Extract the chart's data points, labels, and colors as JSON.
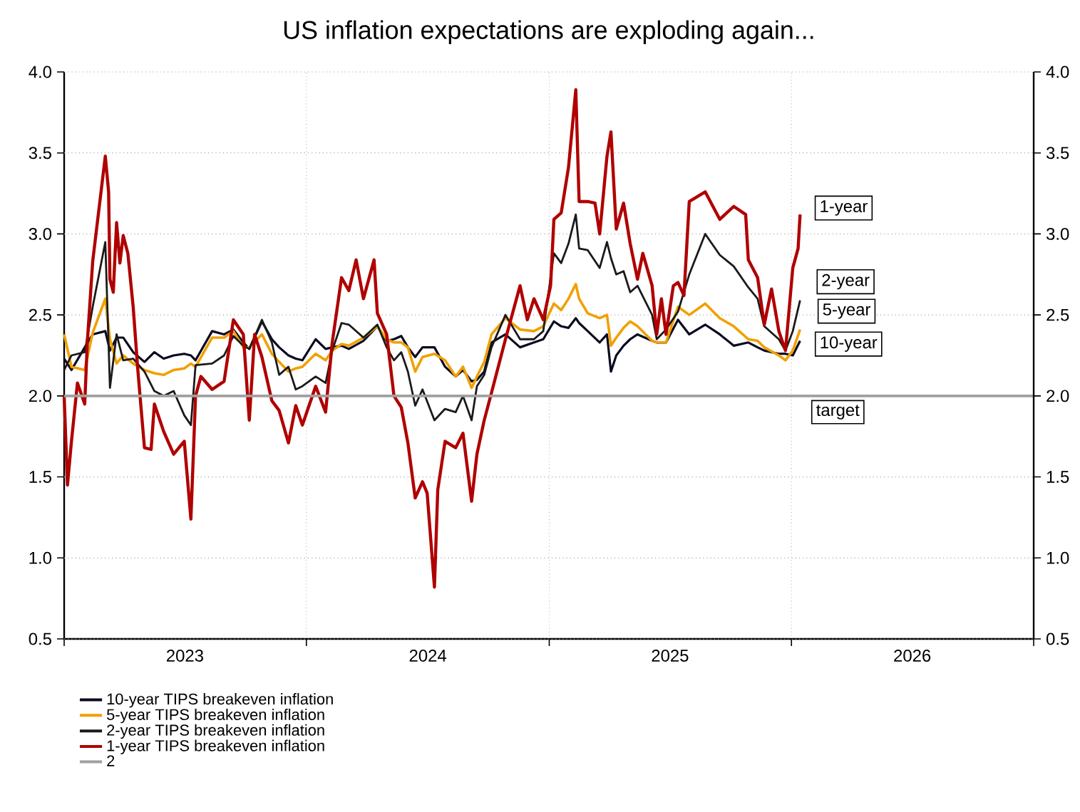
{
  "chart_data": {
    "type": "line",
    "title": "US inflation expectations are exploding again...",
    "xlim": [
      "2023-01-01",
      "2027-01-01"
    ],
    "xticks": [
      {
        "value": "2023-01-01",
        "label": null
      },
      {
        "value": "2023-07-02",
        "label": "2023"
      },
      {
        "value": "2024-01-01",
        "label": null
      },
      {
        "value": "2024-07-02",
        "label": "2024"
      },
      {
        "value": "2025-01-01",
        "label": null
      },
      {
        "value": "2025-07-02",
        "label": "2025"
      },
      {
        "value": "2026-01-01",
        "label": null
      },
      {
        "value": "2026-07-02",
        "label": "2026"
      },
      {
        "value": "2027-01-01",
        "label": null
      }
    ],
    "ylim": [
      0.5,
      4.0
    ],
    "yticks": [
      0.5,
      {
        "value": 1.0,
        "label": "1.0"
      },
      1.5,
      {
        "value": 2.0,
        "label": "2.0"
      },
      2.5,
      {
        "value": 3.0,
        "label": "3.0"
      },
      3.5,
      {
        "value": 4.0,
        "label": "4.0"
      }
    ],
    "y2lim": [
      0.5,
      4.0
    ],
    "y2ticks": [
      0.5,
      {
        "value": 1.0,
        "label": "1.0"
      },
      1.5,
      {
        "value": 2.0,
        "label": "2.0"
      },
      2.5,
      {
        "value": 3.0,
        "label": "3.0"
      },
      3.5,
      {
        "value": 4.0,
        "label": "4.0"
      }
    ],
    "grid": true,
    "legend": "bottom",
    "line_style": "solid",
    "x": [
      "2023-01-01",
      "2023-01-12",
      "2023-02-01",
      "2023-02-13",
      "2023-03-04",
      "2023-03-11",
      "2023-03-21",
      "2023-03-31",
      "2023-04-15",
      "2023-05-02",
      "2023-05-17",
      "2023-05-31",
      "2023-06-15",
      "2023-07-01",
      "2023-07-11",
      "2023-07-18",
      "2023-08-12",
      "2023-08-30",
      "2023-09-13",
      "2023-09-28",
      "2023-10-07",
      "2023-10-26",
      "2023-11-10",
      "2023-11-21",
      "2023-12-05",
      "2023-12-16",
      "2023-12-26",
      "2024-01-15",
      "2024-01-30",
      "2024-02-09",
      "2024-02-23",
      "2024-03-05",
      "2024-03-27",
      "2024-04-17",
      "2024-05-01",
      "2024-05-12",
      "2024-05-23",
      "2024-06-02",
      "2024-06-13",
      "2024-06-24",
      "2024-07-12",
      "2024-07-28",
      "2024-08-13",
      "2024-08-24",
      "2024-09-06",
      "2024-09-14",
      "2024-09-25",
      "2024-10-06",
      "2024-10-27",
      "2024-11-18",
      "2024-12-09",
      "2024-12-23",
      "2025-01-08",
      "2025-01-19",
      "2025-01-30",
      "2025-02-10",
      "2025-02-15",
      "2025-02-28",
      "2025-03-18",
      "2025-03-29",
      "2025-04-04",
      "2025-04-12",
      "2025-04-23",
      "2025-05-03",
      "2025-05-14",
      "2025-06-05",
      "2025-06-12",
      "2025-06-26",
      "2025-07-14",
      "2025-07-31",
      "2025-08-24",
      "2025-09-15",
      "2025-10-06",
      "2025-10-28",
      "2025-11-11",
      "2025-11-21",
      "2025-12-13",
      "2025-12-23",
      "2026-01-03",
      "2026-01-14"
    ],
    "series": [
      {
        "name": "10-year TIPS breakeven inflation",
        "color": "#0a0a20",
        "values": [
          2.23,
          2.16,
          2.3,
          2.38,
          2.4,
          2.28,
          2.36,
          2.36,
          2.27,
          2.21,
          2.27,
          2.23,
          2.25,
          2.26,
          2.25,
          2.22,
          2.4,
          2.38,
          2.41,
          2.33,
          2.29,
          2.46,
          2.35,
          2.3,
          2.25,
          2.23,
          2.22,
          2.35,
          2.29,
          2.3,
          2.31,
          2.29,
          2.34,
          2.43,
          2.34,
          2.35,
          2.37,
          2.3,
          2.24,
          2.3,
          2.3,
          2.18,
          2.12,
          2.16,
          2.09,
          2.1,
          2.15,
          2.33,
          2.38,
          2.3,
          2.33,
          2.35,
          2.46,
          2.43,
          2.42,
          2.48,
          2.45,
          2.4,
          2.33,
          2.38,
          2.15,
          2.25,
          2.31,
          2.35,
          2.38,
          2.34,
          2.33,
          2.33,
          2.47,
          2.38,
          2.44,
          2.38,
          2.31,
          2.33,
          2.3,
          2.28,
          2.26,
          2.26,
          2.25,
          2.34
        ]
      },
      {
        "name": "5-year TIPS breakeven inflation",
        "color": "#f0a000",
        "values": [
          2.38,
          2.18,
          2.16,
          2.39,
          2.6,
          2.35,
          2.2,
          2.25,
          2.2,
          2.16,
          2.14,
          2.13,
          2.16,
          2.17,
          2.2,
          2.18,
          2.36,
          2.36,
          2.4,
          2.3,
          2.3,
          2.38,
          2.26,
          2.21,
          2.15,
          2.17,
          2.18,
          2.26,
          2.22,
          2.28,
          2.32,
          2.31,
          2.36,
          2.43,
          2.35,
          2.33,
          2.33,
          2.3,
          2.15,
          2.24,
          2.26,
          2.22,
          2.12,
          2.18,
          2.05,
          2.12,
          2.21,
          2.38,
          2.48,
          2.41,
          2.4,
          2.43,
          2.57,
          2.53,
          2.6,
          2.69,
          2.6,
          2.51,
          2.48,
          2.5,
          2.31,
          2.36,
          2.42,
          2.46,
          2.43,
          2.34,
          2.33,
          2.33,
          2.55,
          2.5,
          2.57,
          2.48,
          2.43,
          2.35,
          2.34,
          2.3,
          2.25,
          2.22,
          2.28,
          2.41
        ]
      },
      {
        "name": "2-year TIPS breakeven inflation",
        "color": "#1a1a1a",
        "values": [
          2.16,
          2.25,
          2.27,
          2.55,
          2.95,
          2.05,
          2.38,
          2.22,
          2.23,
          2.15,
          2.03,
          2.0,
          2.03,
          1.88,
          1.82,
          2.19,
          2.2,
          2.25,
          2.37,
          2.31,
          2.29,
          2.47,
          2.33,
          2.13,
          2.18,
          2.04,
          2.06,
          2.12,
          2.08,
          2.28,
          2.45,
          2.44,
          2.36,
          2.44,
          2.3,
          2.22,
          2.27,
          2.15,
          1.94,
          2.04,
          1.85,
          1.92,
          1.9,
          2.0,
          1.85,
          2.06,
          2.13,
          2.3,
          2.5,
          2.35,
          2.35,
          2.4,
          2.88,
          2.82,
          2.94,
          3.12,
          2.91,
          2.9,
          2.79,
          2.95,
          2.85,
          2.75,
          2.77,
          2.64,
          2.68,
          2.5,
          2.35,
          2.41,
          2.52,
          2.75,
          3.0,
          2.87,
          2.8,
          2.67,
          2.6,
          2.43,
          2.35,
          2.28,
          2.4,
          2.59
        ]
      },
      {
        "name": "1-year TIPS breakeven inflation",
        "color": "#b00000",
        "x": [
          "2023-01-01",
          "2023-01-06",
          "2023-01-12",
          "2023-01-21",
          "2023-02-01",
          "2023-02-05",
          "2023-02-13",
          "2023-02-20",
          "2023-03-04",
          "2023-03-09",
          "2023-03-11",
          "2023-03-16",
          "2023-03-21",
          "2023-03-26",
          "2023-03-31",
          "2023-04-07",
          "2023-04-15",
          "2023-04-22",
          "2023-05-02",
          "2023-05-12",
          "2023-05-17",
          "2023-05-31",
          "2023-06-15",
          "2023-07-01",
          "2023-07-11",
          "2023-07-18",
          "2023-07-26",
          "2023-08-12",
          "2023-08-30",
          "2023-09-13",
          "2023-09-28",
          "2023-10-07",
          "2023-10-15",
          "2023-10-26",
          "2023-11-10",
          "2023-11-21",
          "2023-12-05",
          "2023-12-16",
          "2023-12-26",
          "2024-01-15",
          "2024-01-30",
          "2024-02-09",
          "2024-02-23",
          "2024-03-05",
          "2024-03-16",
          "2024-03-27",
          "2024-04-12",
          "2024-04-17",
          "2024-05-01",
          "2024-05-12",
          "2024-05-23",
          "2024-06-02",
          "2024-06-13",
          "2024-06-24",
          "2024-07-01",
          "2024-07-12",
          "2024-07-17",
          "2024-07-28",
          "2024-08-13",
          "2024-08-24",
          "2024-09-06",
          "2024-09-14",
          "2024-09-25",
          "2024-10-06",
          "2024-10-27",
          "2024-11-18",
          "2024-11-29",
          "2024-12-09",
          "2024-12-23",
          "2025-01-03",
          "2025-01-08",
          "2025-01-19",
          "2025-01-30",
          "2025-02-10",
          "2025-02-15",
          "2025-02-28",
          "2025-03-11",
          "2025-03-18",
          "2025-03-29",
          "2025-04-04",
          "2025-04-12",
          "2025-04-23",
          "2025-05-03",
          "2025-05-14",
          "2025-05-22",
          "2025-06-05",
          "2025-06-12",
          "2025-06-19",
          "2025-06-26",
          "2025-07-07",
          "2025-07-14",
          "2025-07-23",
          "2025-07-31",
          "2025-08-24",
          "2025-09-15",
          "2025-10-06",
          "2025-10-24",
          "2025-10-28",
          "2025-11-11",
          "2025-11-21",
          "2025-12-02",
          "2025-12-13",
          "2025-12-23",
          "2026-01-03",
          "2026-01-11",
          "2026-01-14"
        ],
        "values": [
          2.0,
          1.45,
          1.72,
          2.08,
          1.95,
          2.34,
          2.83,
          3.07,
          3.48,
          3.26,
          2.72,
          2.64,
          3.07,
          2.82,
          2.99,
          2.88,
          2.55,
          2.16,
          1.68,
          1.67,
          1.95,
          1.78,
          1.64,
          1.72,
          1.24,
          2.0,
          2.12,
          2.04,
          2.09,
          2.47,
          2.38,
          1.85,
          2.38,
          2.24,
          1.97,
          1.91,
          1.71,
          1.94,
          1.82,
          2.06,
          1.9,
          2.33,
          2.73,
          2.65,
          2.84,
          2.6,
          2.84,
          2.51,
          2.38,
          2.0,
          1.93,
          1.71,
          1.37,
          1.47,
          1.4,
          0.82,
          1.42,
          1.72,
          1.68,
          1.77,
          1.35,
          1.64,
          1.85,
          2.02,
          2.35,
          2.68,
          2.47,
          2.6,
          2.47,
          2.68,
          3.09,
          3.13,
          3.41,
          3.89,
          3.2,
          3.2,
          3.19,
          3.0,
          3.48,
          3.63,
          3.03,
          3.19,
          2.94,
          2.72,
          2.88,
          2.68,
          2.38,
          2.6,
          2.38,
          2.68,
          2.7,
          2.62,
          3.2,
          3.26,
          3.09,
          3.17,
          3.12,
          2.84,
          2.73,
          2.44,
          2.66,
          2.4,
          2.28,
          2.79,
          2.91,
          3.12
        ]
      },
      {
        "name": "2",
        "color": "#a0a0a0",
        "x": [
          "2023-01-01",
          "2027-01-01"
        ],
        "values": [
          2,
          2
        ]
      }
    ],
    "annotations": [
      "1-year",
      "2-year",
      "5-year",
      "10-year",
      "target"
    ]
  }
}
